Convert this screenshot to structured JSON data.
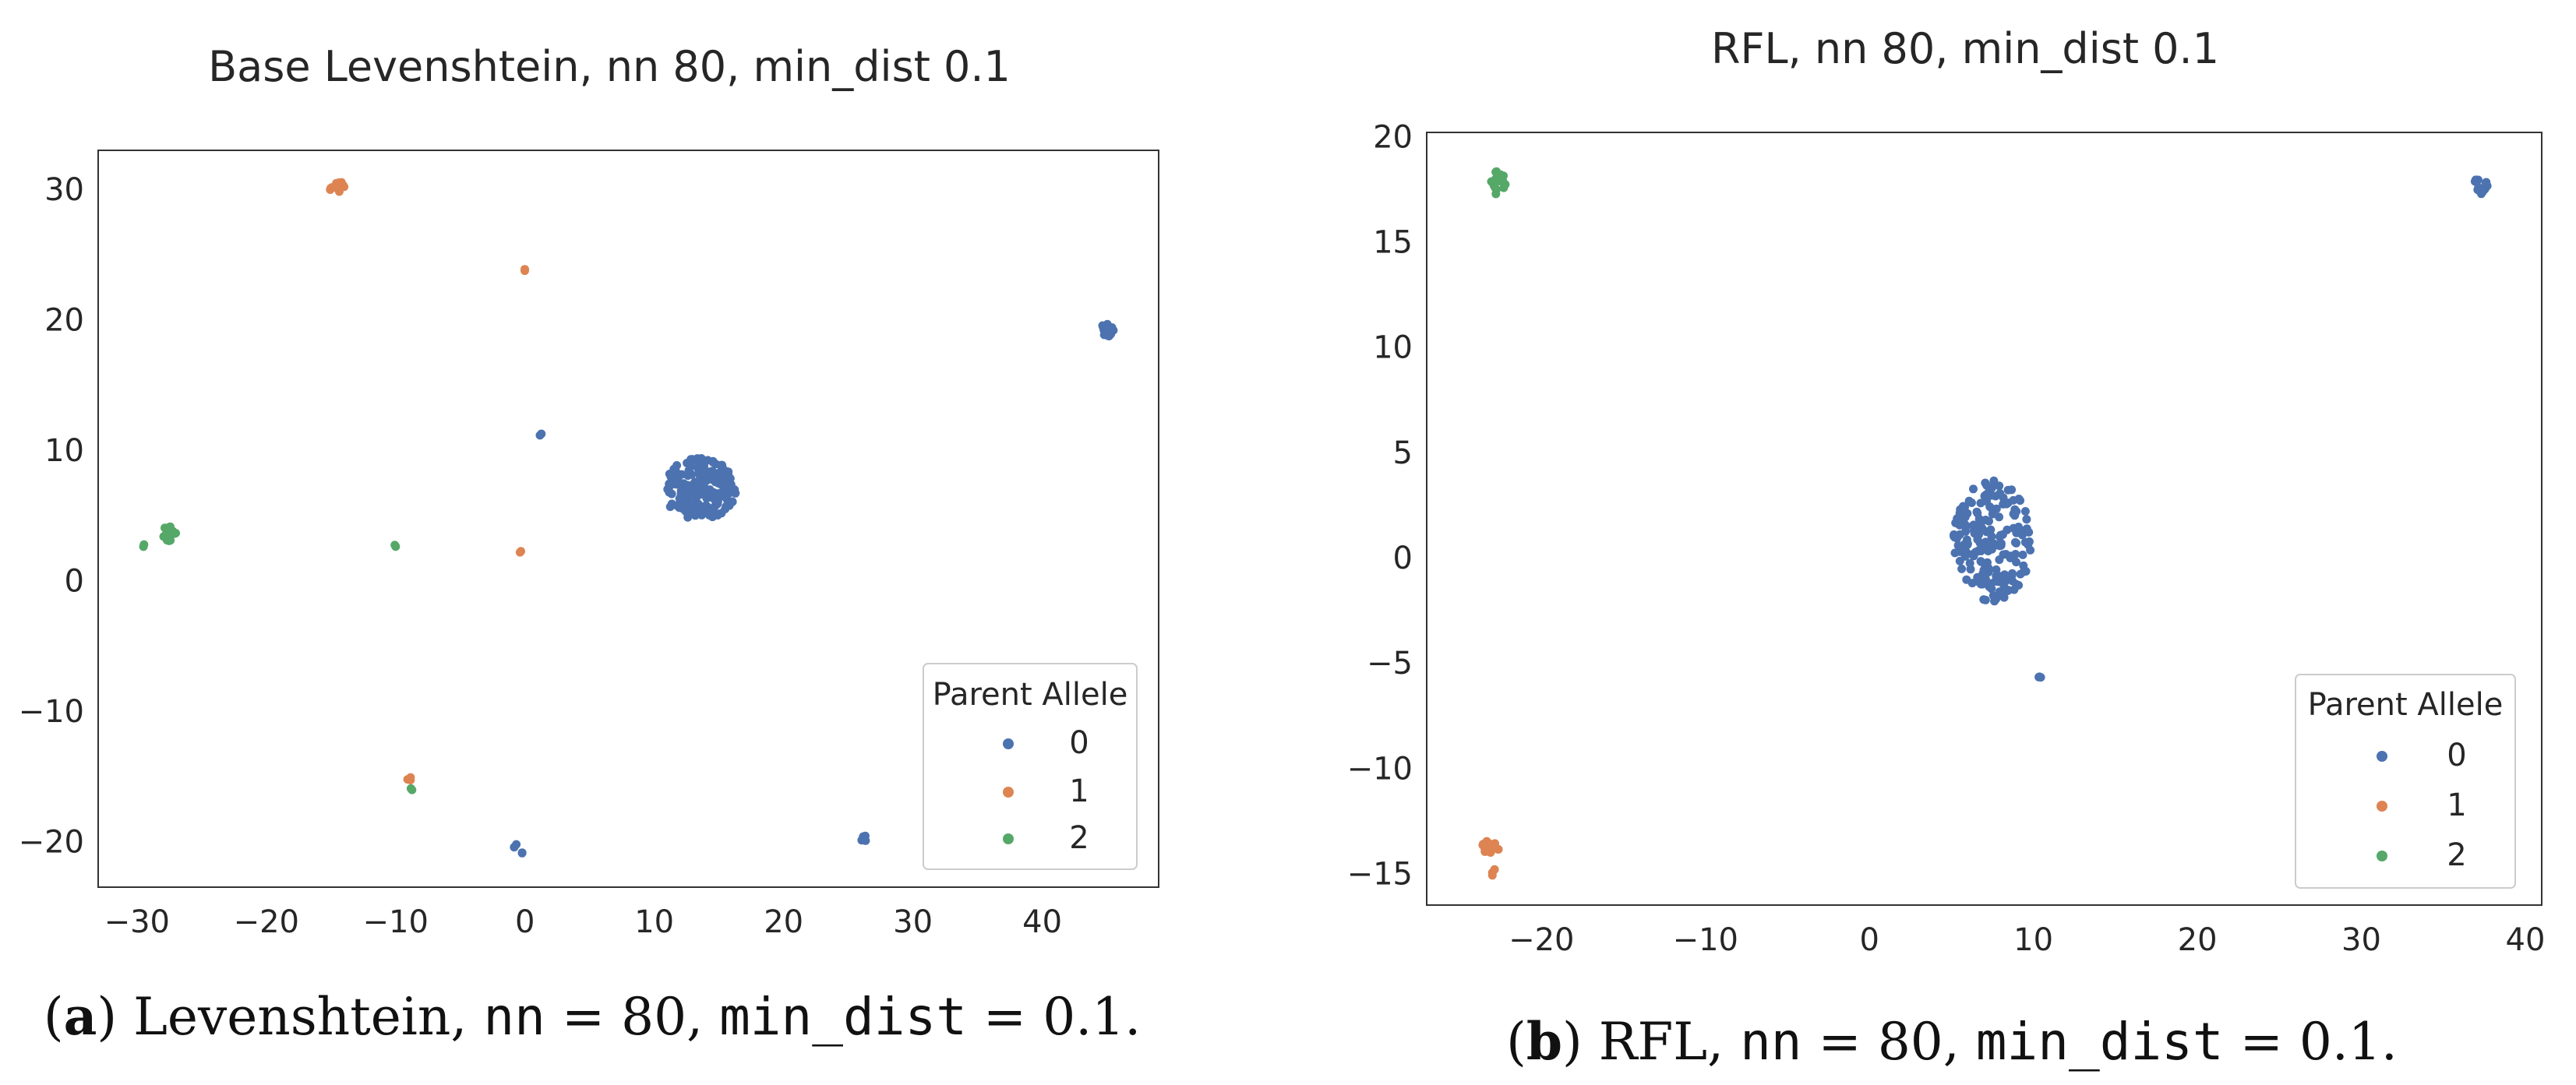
{
  "chart_data": [
    {
      "type": "scatter",
      "title": "Base Levenshtein, nn 80, min_dist 0.1",
      "xlim": [
        -33,
        49
      ],
      "ylim": [
        -23.5,
        33
      ],
      "xticks": [
        -30,
        -20,
        -10,
        0,
        10,
        20,
        30,
        40
      ],
      "yticks": [
        -20,
        -10,
        0,
        10,
        20,
        30
      ],
      "grid": false,
      "legend": {
        "title": "Parent Allele",
        "position": "bottom-right",
        "entries": [
          "0",
          "1",
          "2"
        ]
      },
      "series": [
        {
          "name": "0",
          "color": "#4c72b0",
          "clusters": [
            {
              "x": 13.5,
              "y": 7,
              "rx": 2.8,
              "ry": 2.4,
              "n": 200
            },
            {
              "x": 45,
              "y": 19.2,
              "rx": 0.5,
              "ry": 0.5,
              "n": 12
            },
            {
              "x": 1.2,
              "y": 11.2,
              "rx": 0.1,
              "ry": 0.1,
              "n": 2
            },
            {
              "x": 26.3,
              "y": -19.8,
              "rx": 0.3,
              "ry": 0.3,
              "n": 4
            },
            {
              "x": -0.7,
              "y": -20.4,
              "rx": 0.2,
              "ry": 0.2,
              "n": 2
            },
            {
              "x": -0.3,
              "y": -20.9,
              "rx": 0.2,
              "ry": 0.2,
              "n": 2
            }
          ]
        },
        {
          "name": "1",
          "color": "#dd8452",
          "clusters": [
            {
              "x": -14.5,
              "y": 30.1,
              "rx": 0.6,
              "ry": 0.55,
              "n": 14
            },
            {
              "x": 0,
              "y": 23.8,
              "rx": 0.1,
              "ry": 0.1,
              "n": 2
            },
            {
              "x": -0.4,
              "y": 2.2,
              "rx": 0.1,
              "ry": 0.1,
              "n": 2
            },
            {
              "x": -9,
              "y": -15.2,
              "rx": 0.2,
              "ry": 0.25,
              "n": 3
            }
          ]
        },
        {
          "name": "2",
          "color": "#55a868",
          "clusters": [
            {
              "x": -27.5,
              "y": 3.6,
              "rx": 0.6,
              "ry": 0.55,
              "n": 14
            },
            {
              "x": -29.5,
              "y": 2.7,
              "rx": 0.1,
              "ry": 0.1,
              "n": 2
            },
            {
              "x": -10,
              "y": 2.7,
              "rx": 0.15,
              "ry": 0.15,
              "n": 2
            },
            {
              "x": -8.8,
              "y": -16,
              "rx": 0.15,
              "ry": 0.15,
              "n": 2
            }
          ]
        }
      ]
    },
    {
      "type": "scatter",
      "title": "RFL, nn 80, min_dist 0.1",
      "xlim": [
        -27,
        41
      ],
      "ylim": [
        -16.5,
        20.2
      ],
      "xticks": [
        -20,
        -10,
        0,
        10,
        20,
        30,
        40
      ],
      "yticks": [
        -15,
        -10,
        -5,
        0,
        5,
        10,
        15,
        20
      ],
      "grid": false,
      "legend": {
        "title": "Parent Allele",
        "position": "bottom-right",
        "entries": [
          "0",
          "1",
          "2"
        ]
      },
      "series": [
        {
          "name": "0",
          "color": "#4c72b0",
          "clusters": [
            {
              "x": 7.5,
              "y": 0.8,
              "rx": 2.4,
              "ry": 2.9,
              "n": 200
            },
            {
              "x": 37.3,
              "y": 17.7,
              "rx": 0.45,
              "ry": 0.45,
              "n": 14
            },
            {
              "x": 10.4,
              "y": -5.8,
              "rx": 0.2,
              "ry": 0.2,
              "n": 3
            }
          ]
        },
        {
          "name": "1",
          "color": "#dd8452",
          "clusters": [
            {
              "x": -23.1,
              "y": -13.8,
              "rx": 0.5,
              "ry": 0.55,
              "n": 16
            },
            {
              "x": -22.9,
              "y": -15,
              "rx": 0.2,
              "ry": 0.2,
              "n": 3
            }
          ]
        },
        {
          "name": "2",
          "color": "#55a868",
          "clusters": [
            {
              "x": -22.7,
              "y": 17.8,
              "rx": 0.5,
              "ry": 0.6,
              "n": 16
            }
          ]
        }
      ]
    }
  ],
  "captions": [
    {
      "label": "a",
      "method": "Levenshtein",
      "p1_name": "nn",
      "p1_value": "80",
      "p2_name": "min_dist",
      "p2_value": "0.1"
    },
    {
      "label": "b",
      "method": "RFL",
      "p1_name": "nn",
      "p1_value": "80",
      "p2_name": "min_dist",
      "p2_value": "0.1"
    }
  ]
}
